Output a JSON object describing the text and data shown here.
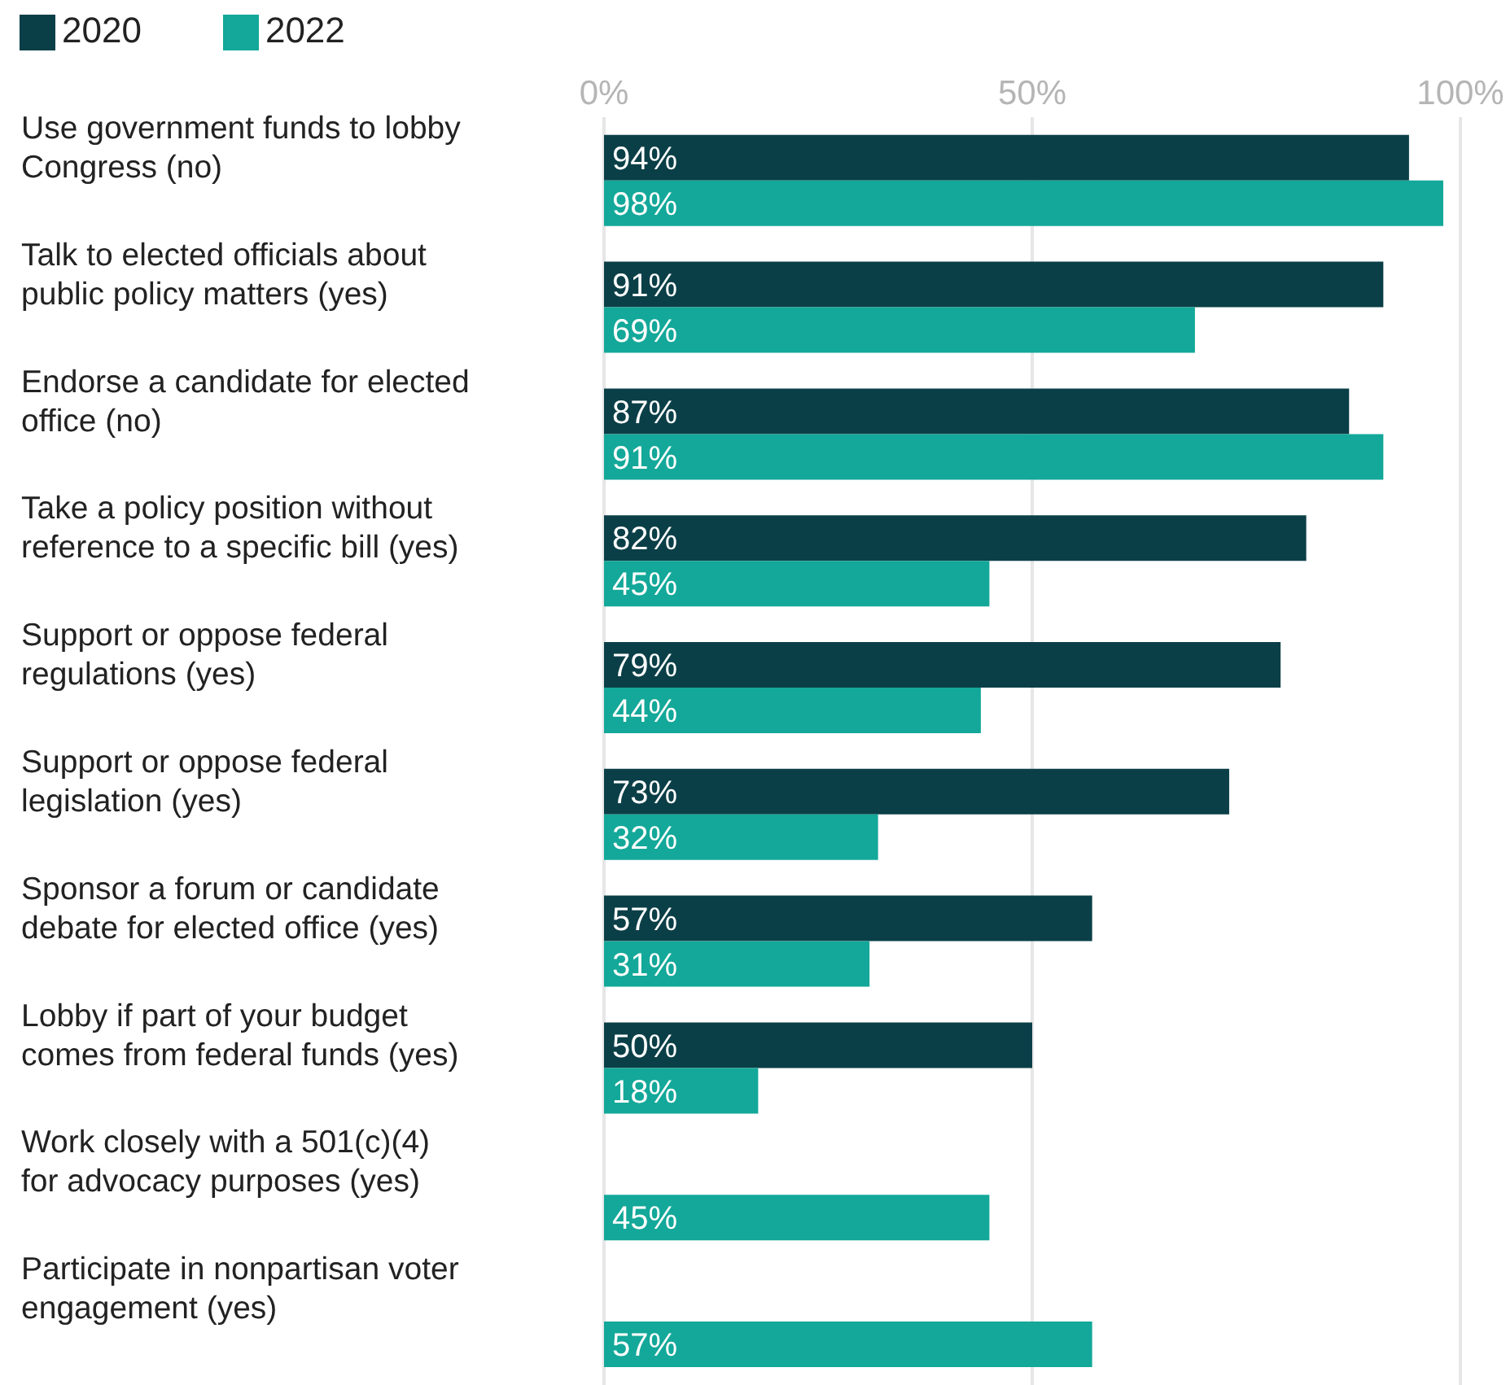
{
  "chart_data": {
    "type": "bar",
    "orientation": "horizontal",
    "categories": [
      "Use government funds to lobby Congress (no)",
      "Talk to elected officials about public policy matters (yes)",
      "Endorse a candidate for elected office (no)",
      "Take a policy position without reference to a specific bill (yes)",
      "Support or oppose federal regulations (yes)",
      "Support or oppose federal legislation (yes)",
      "Sponsor a forum or candidate debate for elected office (yes)",
      "Lobby if part of your budget comes from federal funds (yes)",
      "Work closely with a 501(c)(4) for advocacy purposes (yes)",
      "Participate in nonpartisan voter engagement (yes)"
    ],
    "series": [
      {
        "name": "2020",
        "color": "#0b3f47",
        "values": [
          94,
          91,
          87,
          82,
          79,
          73,
          57,
          50,
          null,
          null
        ],
        "value_labels": [
          "94%",
          "91%",
          "87%",
          "82%",
          "79%",
          "73%",
          "57%",
          "50%",
          null,
          null
        ]
      },
      {
        "name": "2022",
        "color": "#13a899",
        "values": [
          98,
          69,
          91,
          45,
          44,
          32,
          31,
          18,
          45,
          57
        ],
        "value_labels": [
          "98%",
          "69%",
          "91%",
          "45%",
          "44%",
          "32%",
          "31%",
          "18%",
          "45%",
          "57%"
        ]
      }
    ],
    "xlim": [
      0,
      100
    ],
    "xticks": [
      {
        "value": 0,
        "label": "0%"
      },
      {
        "value": 50,
        "label": "50%"
      },
      {
        "value": 100,
        "label": "100%"
      }
    ],
    "grid": "x",
    "legend": "top left"
  }
}
